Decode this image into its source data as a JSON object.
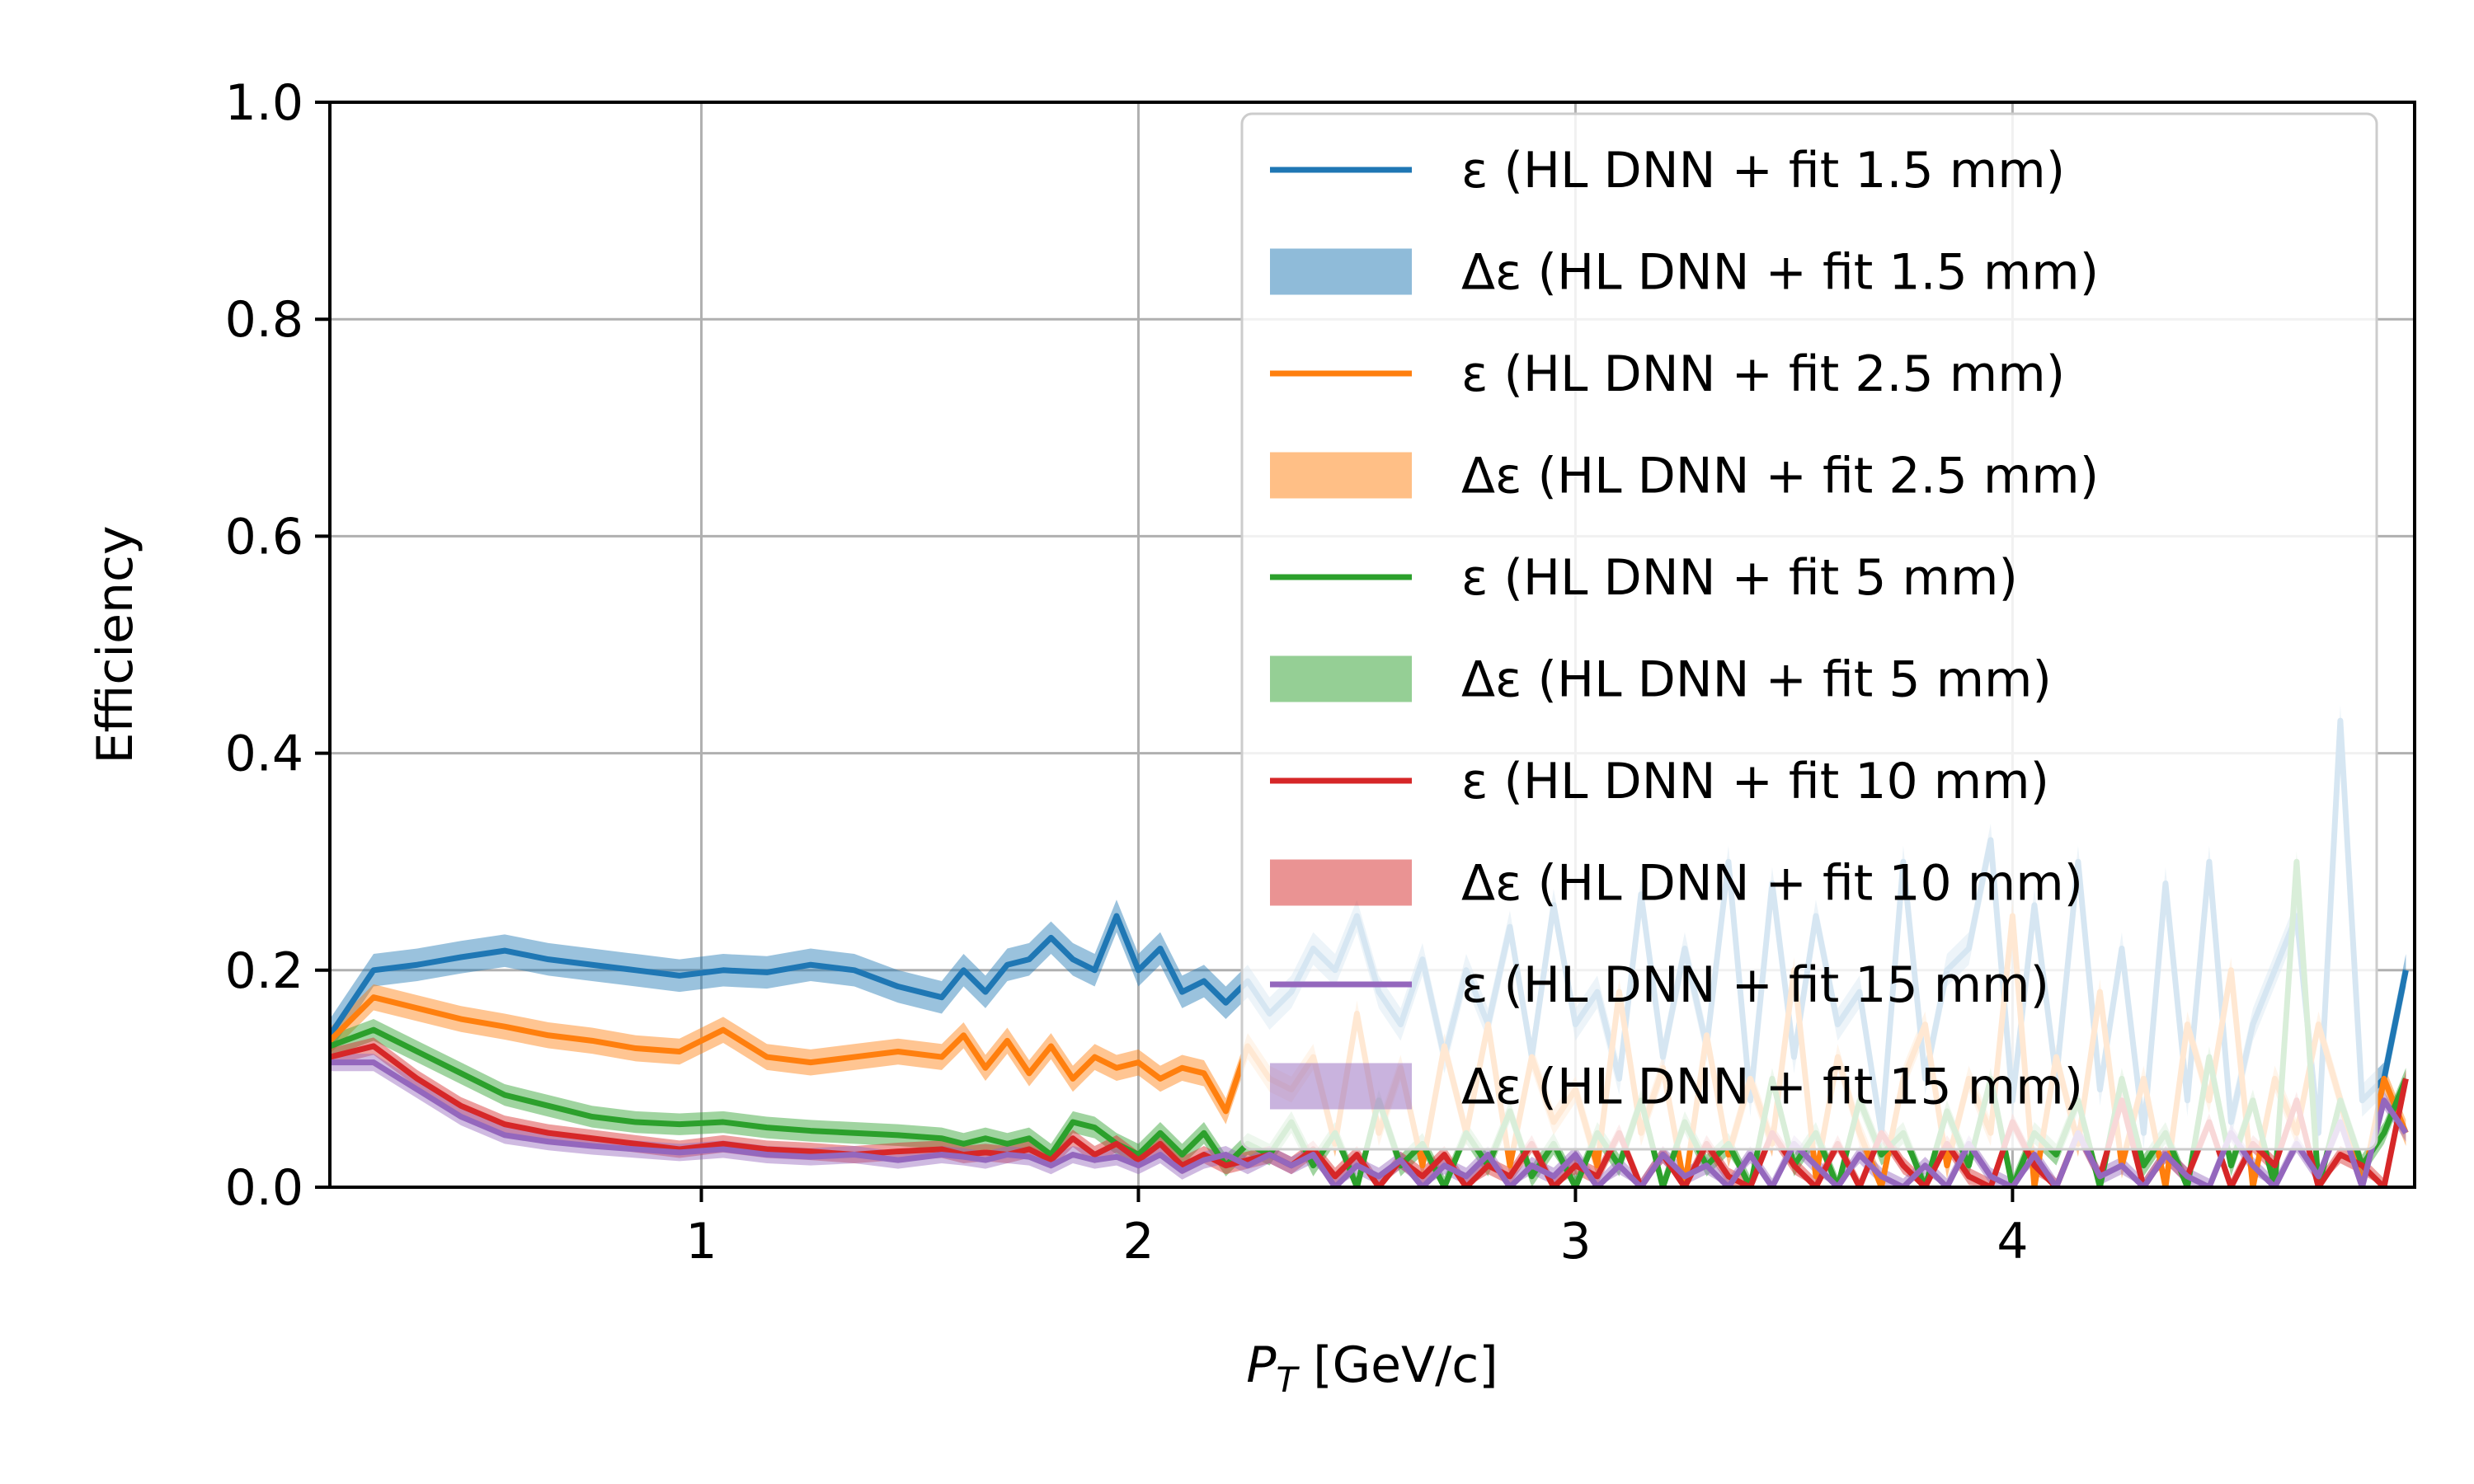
{
  "chart_data": {
    "type": "line",
    "title": "",
    "xlabel": {
      "main": "P",
      "sub": "T",
      "unit": " [GeV/c]"
    },
    "ylabel": "Efficiency",
    "xlim": [
      0.15,
      4.92
    ],
    "ylim": [
      0,
      1
    ],
    "xticks": [
      1,
      2,
      3,
      4
    ],
    "yticks": [
      0.0,
      0.2,
      0.4,
      0.6,
      0.8,
      1.0
    ],
    "xtick_labels": [
      "1",
      "2",
      "3",
      "4"
    ],
    "ytick_labels": [
      "0.0",
      "0.2",
      "0.4",
      "0.6",
      "0.8",
      "1.0"
    ],
    "grid": true,
    "legend_position": "top-right",
    "colors": {
      "blue": "#1f77b4",
      "orange": "#ff7f0e",
      "green": "#2ca02c",
      "red": "#d62728",
      "purple": "#9467bd"
    },
    "x": [
      0.15,
      0.25,
      0.35,
      0.45,
      0.55,
      0.65,
      0.75,
      0.85,
      0.95,
      1.05,
      1.15,
      1.25,
      1.35,
      1.45,
      1.55,
      1.6,
      1.65,
      1.7,
      1.75,
      1.8,
      1.85,
      1.9,
      1.95,
      2.0,
      2.05,
      2.1,
      2.15,
      2.2,
      2.25,
      2.3,
      2.35,
      2.4,
      2.45,
      2.5,
      2.55,
      2.6,
      2.65,
      2.7,
      2.75,
      2.8,
      2.85,
      2.9,
      2.95,
      3.0,
      3.05,
      3.1,
      3.15,
      3.2,
      3.25,
      3.3,
      3.35,
      3.4,
      3.45,
      3.5,
      3.55,
      3.6,
      3.65,
      3.7,
      3.75,
      3.8,
      3.85,
      3.9,
      3.95,
      4.0,
      4.05,
      4.1,
      4.15,
      4.2,
      4.25,
      4.3,
      4.35,
      4.4,
      4.45,
      4.5,
      4.55,
      4.6,
      4.65,
      4.7,
      4.75,
      4.8,
      4.85,
      4.9
    ],
    "series": [
      {
        "name": "ε (HL DNN + fit 1.5 mm)",
        "color": "#1f77b4",
        "values": [
          0.14,
          0.2,
          0.205,
          0.212,
          0.218,
          0.21,
          0.205,
          0.2,
          0.195,
          0.2,
          0.198,
          0.205,
          0.2,
          0.185,
          0.175,
          0.2,
          0.18,
          0.205,
          0.21,
          0.23,
          0.21,
          0.2,
          0.25,
          0.2,
          0.22,
          0.18,
          0.19,
          0.17,
          0.19,
          0.16,
          0.18,
          0.22,
          0.2,
          0.25,
          0.18,
          0.15,
          0.21,
          0.12,
          0.2,
          0.15,
          0.24,
          0.12,
          0.26,
          0.15,
          0.18,
          0.1,
          0.27,
          0.12,
          0.22,
          0.13,
          0.3,
          0.08,
          0.28,
          0.12,
          0.25,
          0.15,
          0.18,
          0.05,
          0.3,
          0.1,
          0.2,
          0.22,
          0.32,
          0.08,
          0.26,
          0.1,
          0.3,
          0.09,
          0.22,
          0.05,
          0.28,
          0.08,
          0.3,
          0.06,
          0.15,
          0.2,
          0.25,
          0.05,
          0.43,
          0.08,
          0.1,
          0.2
        ],
        "band": 0.015
      },
      {
        "name": "ε (HL DNN + fit 2.5 mm)",
        "color": "#ff7f0e",
        "values": [
          0.135,
          0.175,
          0.165,
          0.155,
          0.148,
          0.14,
          0.135,
          0.128,
          0.125,
          0.145,
          0.12,
          0.115,
          0.12,
          0.125,
          0.12,
          0.14,
          0.11,
          0.135,
          0.105,
          0.13,
          0.1,
          0.12,
          0.11,
          0.115,
          0.1,
          0.11,
          0.105,
          0.07,
          0.13,
          0.1,
          0.09,
          0.12,
          0.04,
          0.16,
          0.05,
          0.11,
          0.02,
          0.13,
          0.05,
          0.15,
          0.02,
          0.12,
          0.06,
          0.09,
          0.02,
          0.18,
          0.05,
          0.11,
          0.0,
          0.14,
          0.03,
          0.1,
          0.04,
          0.2,
          0.01,
          0.12,
          0.05,
          0.0,
          0.1,
          0.15,
          0.02,
          0.1,
          0.05,
          0.25,
          0.0,
          0.12,
          0.04,
          0.18,
          0.02,
          0.1,
          0.0,
          0.15,
          0.08,
          0.2,
          0.0,
          0.1,
          0.05,
          0.15,
          0.08,
          0.0,
          0.1,
          0.05
        ],
        "band": 0.012
      },
      {
        "name": "ε (HL DNN + fit 5 mm)",
        "color": "#2ca02c",
        "values": [
          0.13,
          0.145,
          0.125,
          0.105,
          0.085,
          0.075,
          0.065,
          0.06,
          0.058,
          0.06,
          0.055,
          0.052,
          0.05,
          0.048,
          0.045,
          0.04,
          0.045,
          0.04,
          0.045,
          0.03,
          0.06,
          0.055,
          0.04,
          0.03,
          0.05,
          0.03,
          0.05,
          0.02,
          0.04,
          0.03,
          0.06,
          0.02,
          0.05,
          0.0,
          0.08,
          0.02,
          0.04,
          0.0,
          0.05,
          0.02,
          0.07,
          0.01,
          0.04,
          0.0,
          0.05,
          0.02,
          0.08,
          0.0,
          0.06,
          0.02,
          0.04,
          0.0,
          0.1,
          0.02,
          0.05,
          0.0,
          0.08,
          0.03,
          0.05,
          0.0,
          0.07,
          0.02,
          0.1,
          0.0,
          0.05,
          0.03,
          0.08,
          0.0,
          0.1,
          0.02,
          0.05,
          0.0,
          0.12,
          0.02,
          0.08,
          0.0,
          0.3,
          0.0,
          0.08,
          0.02,
          0.05,
          0.1
        ],
        "band": 0.01
      },
      {
        "name": "ε (HL DNN + fit 10 mm)",
        "color": "#d62728",
        "values": [
          0.12,
          0.13,
          0.1,
          0.075,
          0.058,
          0.05,
          0.045,
          0.04,
          0.035,
          0.04,
          0.035,
          0.033,
          0.03,
          0.033,
          0.035,
          0.03,
          0.032,
          0.03,
          0.035,
          0.025,
          0.045,
          0.03,
          0.04,
          0.025,
          0.04,
          0.02,
          0.03,
          0.02,
          0.025,
          0.03,
          0.02,
          0.035,
          0.01,
          0.03,
          0.0,
          0.025,
          0.01,
          0.03,
          0.0,
          0.02,
          0.01,
          0.04,
          0.0,
          0.02,
          0.01,
          0.05,
          0.0,
          0.03,
          0.0,
          0.04,
          0.01,
          0.0,
          0.05,
          0.02,
          0.0,
          0.04,
          0.0,
          0.05,
          0.02,
          0.0,
          0.04,
          0.01,
          0.0,
          0.06,
          0.02,
          0.0,
          0.05,
          0.01,
          0.08,
          0.0,
          0.03,
          0.01,
          0.06,
          0.0,
          0.04,
          0.02,
          0.08,
          0.0,
          0.03,
          0.02,
          0.0,
          0.1
        ],
        "band": 0.008
      },
      {
        "name": "ε (HL DNN + fit 15 mm)",
        "color": "#9467bd",
        "values": [
          0.115,
          0.115,
          0.09,
          0.065,
          0.048,
          0.042,
          0.038,
          0.035,
          0.032,
          0.035,
          0.03,
          0.028,
          0.03,
          0.025,
          0.03,
          0.028,
          0.025,
          0.03,
          0.028,
          0.02,
          0.03,
          0.025,
          0.028,
          0.02,
          0.03,
          0.015,
          0.025,
          0.03,
          0.02,
          0.03,
          0.02,
          0.03,
          0.0,
          0.02,
          0.01,
          0.025,
          0.0,
          0.02,
          0.01,
          0.03,
          0.0,
          0.02,
          0.01,
          0.03,
          0.0,
          0.02,
          0.0,
          0.03,
          0.01,
          0.02,
          0.0,
          0.03,
          0.0,
          0.04,
          0.02,
          0.0,
          0.03,
          0.01,
          0.0,
          0.02,
          0.0,
          0.04,
          0.01,
          0.0,
          0.03,
          0.0,
          0.05,
          0.01,
          0.02,
          0.0,
          0.03,
          0.01,
          0.0,
          0.05,
          0.02,
          0.0,
          0.04,
          0.01,
          0.06,
          0.0,
          0.08,
          0.05
        ],
        "band": 0.008
      }
    ],
    "legend": [
      {
        "kind": "line",
        "color": "#1f77b4",
        "label": "ε (HL DNN + fit 1.5 mm)"
      },
      {
        "kind": "patch",
        "color": "#1f77b4",
        "label": "Δε (HL DNN + fit 1.5 mm)"
      },
      {
        "kind": "line",
        "color": "#ff7f0e",
        "label": "ε (HL DNN + fit 2.5 mm)"
      },
      {
        "kind": "patch",
        "color": "#ff7f0e",
        "label": "Δε (HL DNN + fit 2.5 mm)"
      },
      {
        "kind": "line",
        "color": "#2ca02c",
        "label": "ε (HL DNN + fit 5 mm)"
      },
      {
        "kind": "patch",
        "color": "#2ca02c",
        "label": "Δε (HL DNN + fit 5 mm)"
      },
      {
        "kind": "line",
        "color": "#d62728",
        "label": "ε (HL DNN + fit 10 mm)"
      },
      {
        "kind": "patch",
        "color": "#d62728",
        "label": "Δε (HL DNN + fit 10 mm)"
      },
      {
        "kind": "line",
        "color": "#9467bd",
        "label": "ε (HL DNN + fit 15 mm)"
      },
      {
        "kind": "patch",
        "color": "#9467bd",
        "label": "Δε (HL DNN + fit 15 mm)"
      }
    ]
  }
}
